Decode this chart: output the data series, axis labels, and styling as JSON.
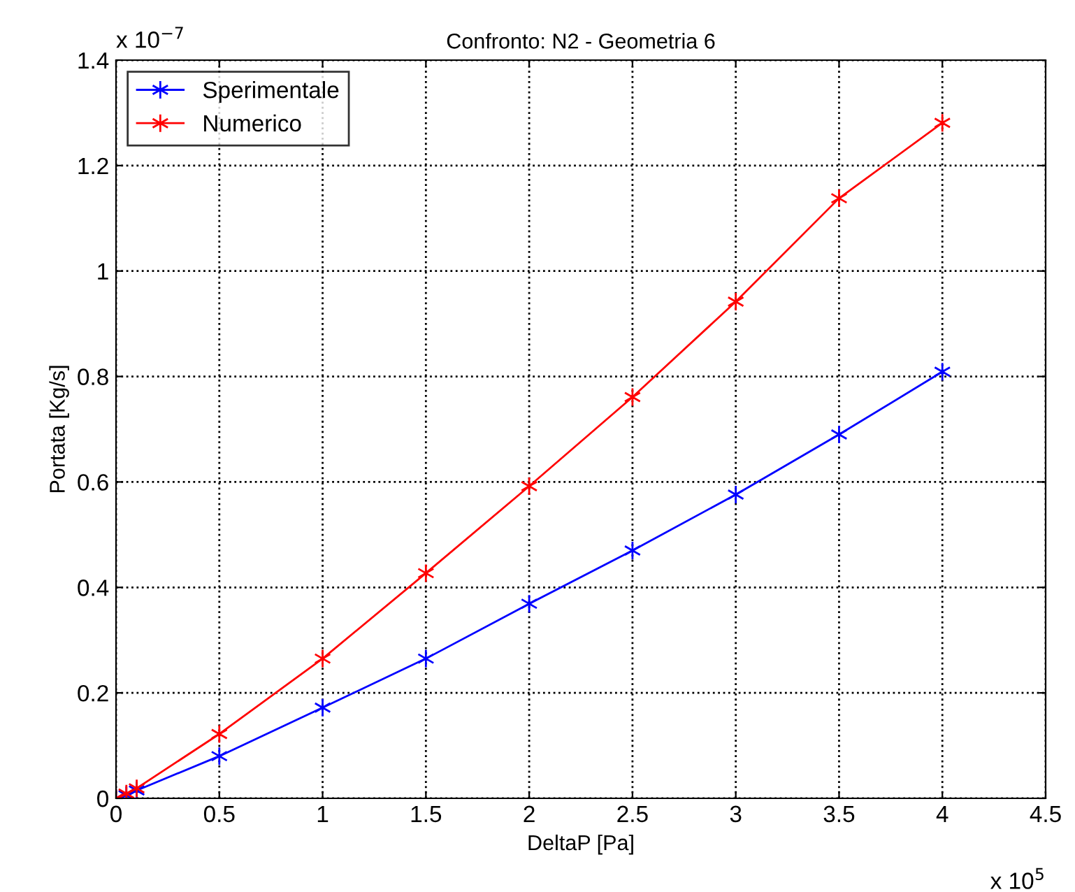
{
  "chart_data": {
    "type": "line",
    "title": "Confronto: N2 - Geometria 6",
    "xlabel": "DeltaP [Pa]",
    "ylabel": "Portata [Kg/s]",
    "annotations": [
      "x 10$^{5}$",
      "x 10$^{−7}$"
    ],
    "x": [
      0,
      0.05,
      0.1,
      0.5,
      1,
      1.5,
      2,
      2.5,
      3,
      3.5,
      4
    ],
    "series": [
      {
        "name": "Sperimentale",
        "color": "#0000ff",
        "values": [
          0,
          0.006,
          0.015,
          0.08,
          0.172,
          0.265,
          0.369,
          0.47,
          0.576,
          0.69,
          0.809
        ]
      },
      {
        "name": "Numerico",
        "color": "#ff0000",
        "values": [
          0,
          0.009,
          0.019,
          0.122,
          0.265,
          0.427,
          0.592,
          0.761,
          0.942,
          1.138,
          1.281
        ]
      }
    ],
    "xlim": [
      0,
      4.5
    ],
    "xticks": [
      0,
      0.5,
      1,
      1.5,
      2,
      2.5,
      3,
      3.5,
      4,
      4.5
    ],
    "ylim": [
      0,
      1.4
    ],
    "yticks": [
      0,
      0.2,
      0.4,
      0.6,
      0.8,
      1,
      1.2,
      1.4
    ],
    "grid": true,
    "legend": "top left",
    "marker": "cross",
    "line_style": "solid"
  }
}
